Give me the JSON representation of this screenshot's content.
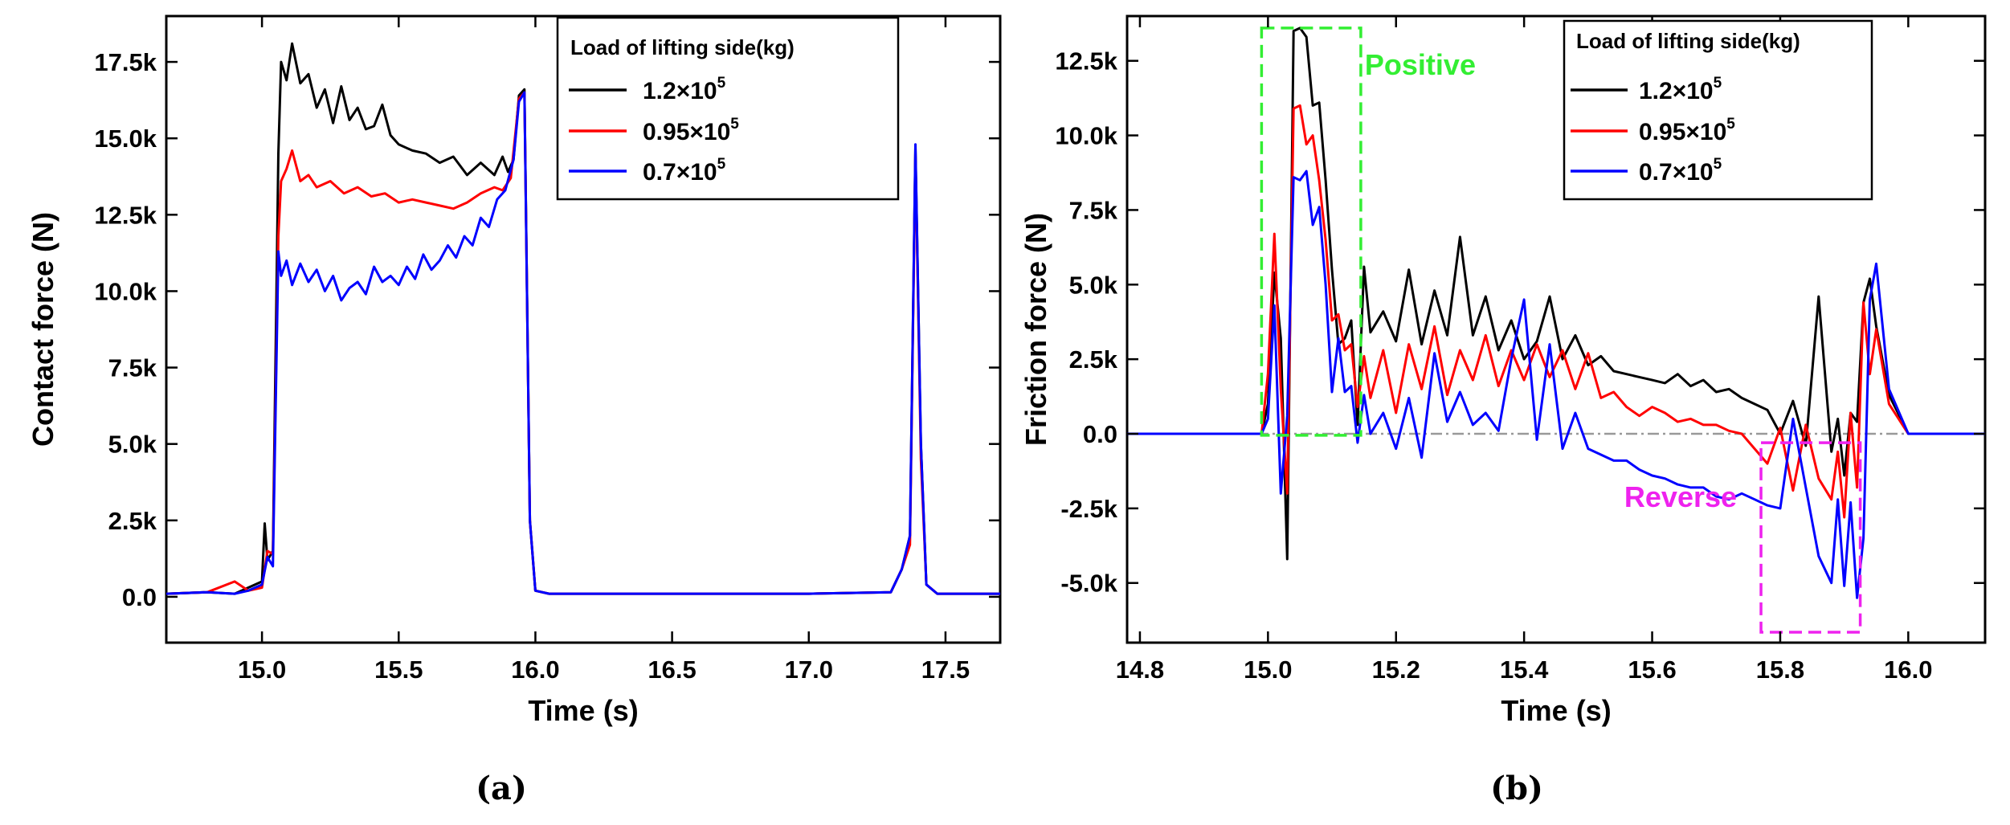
{
  "figure": {
    "panel_labels": [
      "(a)",
      "(b)"
    ]
  },
  "chart_data": [
    {
      "type": "line",
      "title": "",
      "xlabel": "Time (s)",
      "ylabel": "Contact force (N)",
      "xlim": [
        14.65,
        17.7
      ],
      "ylim": [
        -1500,
        19000
      ],
      "xticks": [
        15.0,
        15.5,
        16.0,
        16.5,
        17.0,
        17.5
      ],
      "xtick_labels": [
        "15.0",
        "15.5",
        "16.0",
        "16.5",
        "17.0",
        "17.5"
      ],
      "yticks": [
        0,
        2500,
        5000,
        7500,
        10000,
        12500,
        15000,
        17500
      ],
      "ytick_labels": [
        "0.0",
        "2.5k",
        "5.0k",
        "7.5k",
        "10.0k",
        "12.5k",
        "15.0k",
        "17.5k"
      ],
      "legend": {
        "title": "Load of lifting side(kg)",
        "position": "top-right",
        "entries": [
          {
            "mantissa": "1.2×10",
            "exp": "5"
          },
          {
            "mantissa": "0.95×10",
            "exp": "5"
          },
          {
            "mantissa": "0.7×10",
            "exp": "5"
          }
        ]
      },
      "series": [
        {
          "name": "1.2×10^5",
          "color": "#000000",
          "x": [
            14.65,
            14.8,
            14.9,
            14.95,
            15.0,
            15.01,
            15.02,
            15.04,
            15.06,
            15.07,
            15.09,
            15.11,
            15.14,
            15.17,
            15.2,
            15.23,
            15.26,
            15.29,
            15.32,
            15.35,
            15.38,
            15.41,
            15.44,
            15.47,
            15.5,
            15.55,
            15.6,
            15.65,
            15.7,
            15.75,
            15.8,
            15.85,
            15.88,
            15.9,
            15.92,
            15.94,
            15.96,
            15.98,
            16.0,
            16.05,
            16.5,
            17.0,
            17.3,
            17.34,
            17.37,
            17.39,
            17.41,
            17.43,
            17.47,
            17.7
          ],
          "y": [
            100,
            150,
            100,
            300,
            500,
            2400,
            1200,
            1500,
            14500,
            17500,
            16900,
            18100,
            16800,
            17100,
            16000,
            16600,
            15500,
            16700,
            15600,
            16000,
            15300,
            15400,
            16100,
            15100,
            14800,
            14600,
            14500,
            14200,
            14400,
            13800,
            14200,
            13800,
            14400,
            13900,
            14300,
            16400,
            16600,
            2500,
            200,
            100,
            100,
            100,
            150,
            900,
            2000,
            14700,
            5000,
            400,
            100,
            100
          ]
        },
        {
          "name": "0.95×10^5",
          "color": "#ff0000",
          "x": [
            14.65,
            14.8,
            14.9,
            14.95,
            15.0,
            15.02,
            15.04,
            15.06,
            15.07,
            15.09,
            15.11,
            15.14,
            15.17,
            15.2,
            15.25,
            15.3,
            15.35,
            15.4,
            15.45,
            15.5,
            15.55,
            15.6,
            15.65,
            15.7,
            15.75,
            15.8,
            15.85,
            15.88,
            15.91,
            15.94,
            15.96,
            15.98,
            16.0,
            16.05,
            16.5,
            17.0,
            17.3,
            17.34,
            17.37,
            17.39,
            17.41,
            17.43,
            17.47,
            17.7
          ],
          "y": [
            100,
            150,
            500,
            200,
            300,
            1500,
            1400,
            11800,
            13600,
            14000,
            14600,
            13600,
            13800,
            13400,
            13600,
            13200,
            13400,
            13100,
            13200,
            12900,
            13000,
            12900,
            12800,
            12700,
            12900,
            13200,
            13400,
            13300,
            13700,
            16300,
            16500,
            2500,
            200,
            100,
            100,
            100,
            150,
            900,
            1700,
            14500,
            4500,
            400,
            100,
            100
          ]
        },
        {
          "name": "0.7×10^5",
          "color": "#0000ff",
          "x": [
            14.65,
            14.8,
            14.9,
            14.95,
            15.0,
            15.02,
            15.04,
            15.06,
            15.07,
            15.09,
            15.11,
            15.14,
            15.17,
            15.2,
            15.23,
            15.26,
            15.29,
            15.32,
            15.35,
            15.38,
            15.41,
            15.44,
            15.47,
            15.5,
            15.53,
            15.56,
            15.59,
            15.62,
            15.65,
            15.68,
            15.71,
            15.74,
            15.77,
            15.8,
            15.83,
            15.86,
            15.89,
            15.92,
            15.94,
            15.96,
            15.98,
            16.0,
            16.05,
            16.5,
            17.0,
            17.3,
            17.34,
            17.37,
            17.39,
            17.41,
            17.43,
            17.47,
            17.7
          ],
          "y": [
            100,
            150,
            100,
            200,
            400,
            1300,
            1000,
            11300,
            10500,
            11000,
            10200,
            10900,
            10300,
            10700,
            10000,
            10500,
            9700,
            10100,
            10300,
            9900,
            10800,
            10300,
            10500,
            10200,
            10800,
            10400,
            11200,
            10700,
            11000,
            11500,
            11100,
            11800,
            11500,
            12400,
            12100,
            13000,
            13300,
            14300,
            16200,
            16500,
            2500,
            200,
            100,
            100,
            100,
            150,
            900,
            2000,
            14800,
            5000,
            400,
            100,
            100
          ]
        }
      ]
    },
    {
      "type": "line",
      "title": "",
      "xlabel": "Time (s)",
      "ylabel": "Friction force (N)",
      "xlim": [
        14.78,
        16.12
      ],
      "ylim": [
        -7000,
        14000
      ],
      "xticks": [
        14.8,
        15.0,
        15.2,
        15.4,
        15.6,
        15.8,
        16.0
      ],
      "xtick_labels": [
        "14.8",
        "15.0",
        "15.2",
        "15.4",
        "15.6",
        "15.8",
        "16.0"
      ],
      "yticks": [
        -5000,
        -2500,
        0,
        2500,
        5000,
        7500,
        10000,
        12500
      ],
      "ytick_labels": [
        "-5.0k",
        "-2.5k",
        "0.0",
        "2.5k",
        "5.0k",
        "7.5k",
        "10.0k",
        "12.5k"
      ],
      "legend": {
        "title": "Load of lifting side(kg)",
        "position": "top-right",
        "entries": [
          {
            "mantissa": "1.2×10",
            "exp": "5"
          },
          {
            "mantissa": "0.95×10",
            "exp": "5"
          },
          {
            "mantissa": "0.7×10",
            "exp": "5"
          }
        ]
      },
      "zero_line_color": "#999999",
      "annotations": [
        {
          "text": "Positive",
          "color": "#33ee33",
          "box": {
            "x0": 14.99,
            "x1": 15.145,
            "y0": -50,
            "y1": 13600
          }
        },
        {
          "text": "Reverse",
          "color": "#ee22ee",
          "box": {
            "x0": 15.77,
            "x1": 15.925,
            "y0": -6650,
            "y1": -300
          }
        }
      ],
      "series": [
        {
          "name": "1.2×10^5",
          "color": "#000000",
          "x": [
            14.78,
            14.99,
            15.0,
            15.01,
            15.02,
            15.03,
            15.04,
            15.05,
            15.06,
            15.07,
            15.08,
            15.09,
            15.1,
            15.11,
            15.12,
            15.13,
            15.14,
            15.15,
            15.16,
            15.18,
            15.2,
            15.22,
            15.24,
            15.26,
            15.28,
            15.3,
            15.32,
            15.34,
            15.36,
            15.38,
            15.4,
            15.42,
            15.44,
            15.46,
            15.48,
            15.5,
            15.52,
            15.54,
            15.56,
            15.58,
            15.6,
            15.62,
            15.64,
            15.66,
            15.68,
            15.7,
            15.72,
            15.74,
            15.76,
            15.78,
            15.8,
            15.82,
            15.84,
            15.86,
            15.88,
            15.89,
            15.9,
            15.91,
            15.92,
            15.93,
            15.94,
            15.95,
            15.97,
            16.0,
            16.12
          ],
          "y": [
            0,
            0,
            1000,
            5400,
            3200,
            -4200,
            13500,
            13600,
            13300,
            11000,
            11100,
            8500,
            5500,
            3000,
            3200,
            3800,
            300,
            5600,
            3400,
            4100,
            3100,
            5500,
            3000,
            4800,
            3300,
            6600,
            3300,
            4600,
            2800,
            3800,
            2500,
            3100,
            4600,
            2500,
            3300,
            2300,
            2600,
            2100,
            2000,
            1900,
            1800,
            1700,
            2000,
            1600,
            1800,
            1400,
            1500,
            1200,
            1000,
            800,
            0,
            1100,
            -400,
            4600,
            -600,
            500,
            -1400,
            700,
            400,
            4400,
            5200,
            3600,
            1300,
            0,
            0
          ]
        },
        {
          "name": "0.95×10^5",
          "color": "#ff0000",
          "x": [
            14.78,
            14.99,
            15.0,
            15.01,
            15.02,
            15.03,
            15.04,
            15.05,
            15.06,
            15.07,
            15.08,
            15.09,
            15.1,
            15.11,
            15.12,
            15.13,
            15.14,
            15.15,
            15.16,
            15.18,
            15.2,
            15.22,
            15.24,
            15.26,
            15.28,
            15.3,
            15.32,
            15.34,
            15.36,
            15.38,
            15.4,
            15.42,
            15.44,
            15.46,
            15.48,
            15.5,
            15.52,
            15.54,
            15.56,
            15.58,
            15.6,
            15.62,
            15.64,
            15.66,
            15.68,
            15.7,
            15.72,
            15.74,
            15.76,
            15.78,
            15.8,
            15.82,
            15.84,
            15.86,
            15.88,
            15.89,
            15.9,
            15.91,
            15.92,
            15.93,
            15.94,
            15.95,
            15.97,
            16.0,
            16.12
          ],
          "y": [
            0,
            0,
            2000,
            6700,
            1500,
            -2000,
            10900,
            11000,
            9700,
            10000,
            8500,
            6500,
            3800,
            4000,
            2800,
            3000,
            900,
            2600,
            1200,
            2800,
            700,
            3000,
            1500,
            3600,
            1300,
            2800,
            1800,
            3300,
            1600,
            2800,
            1800,
            3000,
            1900,
            2800,
            1500,
            2700,
            1200,
            1400,
            900,
            600,
            900,
            700,
            400,
            500,
            300,
            300,
            100,
            0,
            -500,
            -1000,
            200,
            -1900,
            300,
            -1500,
            -2200,
            -600,
            -2800,
            700,
            -1800,
            4400,
            2000,
            3500,
            1000,
            0,
            0
          ]
        },
        {
          "name": "0.7×10^5",
          "color": "#0000ff",
          "x": [
            14.78,
            14.99,
            15.0,
            15.01,
            15.02,
            15.03,
            15.04,
            15.05,
            15.06,
            15.07,
            15.08,
            15.09,
            15.1,
            15.11,
            15.12,
            15.13,
            15.14,
            15.15,
            15.16,
            15.18,
            15.2,
            15.22,
            15.24,
            15.26,
            15.28,
            15.3,
            15.32,
            15.34,
            15.36,
            15.38,
            15.4,
            15.42,
            15.44,
            15.46,
            15.48,
            15.5,
            15.52,
            15.54,
            15.56,
            15.58,
            15.6,
            15.62,
            15.64,
            15.66,
            15.68,
            15.7,
            15.72,
            15.74,
            15.76,
            15.78,
            15.8,
            15.82,
            15.84,
            15.86,
            15.88,
            15.89,
            15.9,
            15.91,
            15.92,
            15.93,
            15.94,
            15.95,
            15.97,
            16.0,
            16.12
          ],
          "y": [
            0,
            0,
            500,
            4300,
            -2000,
            600,
            8600,
            8500,
            8800,
            7000,
            7600,
            5000,
            1400,
            3200,
            1400,
            1600,
            -300,
            1300,
            0,
            700,
            -500,
            1200,
            -800,
            2700,
            400,
            1400,
            300,
            700,
            100,
            2500,
            4500,
            -200,
            3000,
            -500,
            700,
            -500,
            -700,
            -900,
            -900,
            -1200,
            -1400,
            -1500,
            -1700,
            -1800,
            -1800,
            -2100,
            -2200,
            -2000,
            -2200,
            -2400,
            -2500,
            500,
            -1800,
            -4100,
            -5000,
            -2200,
            -5100,
            -2300,
            -5500,
            -3500,
            4500,
            5700,
            1500,
            0,
            0
          ]
        }
      ]
    }
  ]
}
